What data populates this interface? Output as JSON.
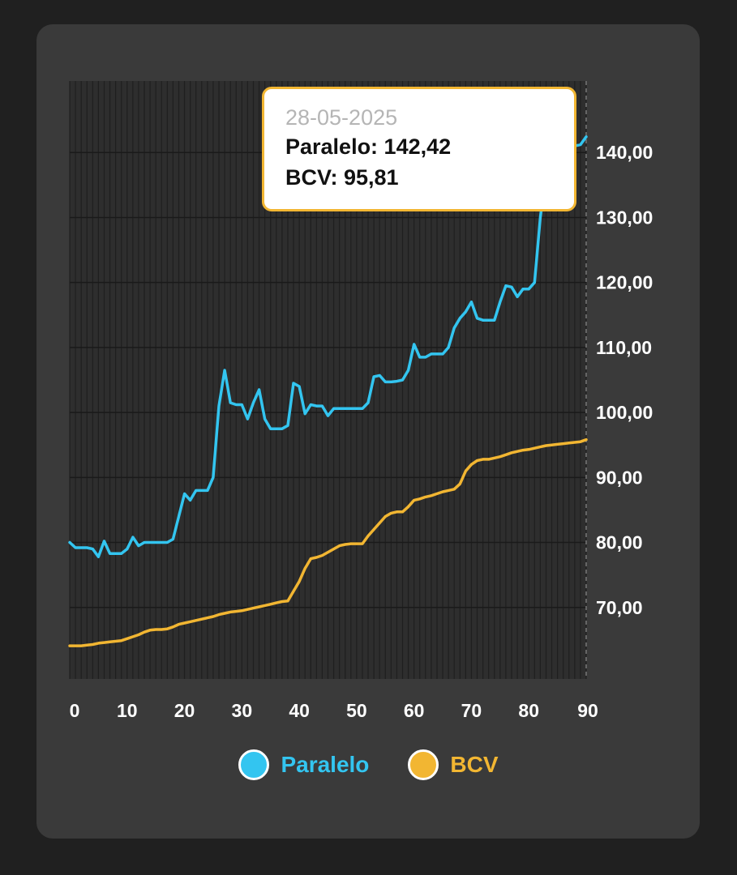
{
  "chart_data": {
    "type": "line",
    "x_ticks": [
      0,
      10,
      20,
      30,
      40,
      50,
      60,
      70,
      80,
      90
    ],
    "y_ticks": [
      70,
      80,
      90,
      100,
      110,
      120,
      130,
      140
    ],
    "y_tick_labels": [
      "70,00",
      "80,00",
      "90,00",
      "100,00",
      "110,00",
      "120,00",
      "130,00",
      "140,00"
    ],
    "xlim": [
      0,
      90
    ],
    "ylim": [
      59,
      151
    ],
    "grid": true,
    "legend_position": "bottom",
    "series": [
      {
        "name": "Paralelo",
        "color": "#33c5f0",
        "x": [
          0,
          1,
          2,
          3,
          4,
          5,
          6,
          7,
          8,
          9,
          10,
          11,
          12,
          13,
          14,
          15,
          16,
          17,
          18,
          19,
          20,
          21,
          22,
          23,
          24,
          25,
          26,
          27,
          28,
          29,
          30,
          31,
          32,
          33,
          34,
          35,
          36,
          37,
          38,
          39,
          40,
          41,
          42,
          43,
          44,
          45,
          46,
          47,
          48,
          49,
          50,
          51,
          52,
          53,
          54,
          55,
          56,
          57,
          58,
          59,
          60,
          61,
          62,
          63,
          64,
          65,
          66,
          67,
          68,
          69,
          70,
          71,
          72,
          73,
          74,
          75,
          76,
          77,
          78,
          79,
          80,
          81,
          82,
          83,
          84,
          85,
          86,
          87,
          88,
          89,
          90
        ],
        "values": [
          80.0,
          79.2,
          79.2,
          79.2,
          79.0,
          77.8,
          80.2,
          78.3,
          78.3,
          78.3,
          79.0,
          80.8,
          79.5,
          80.0,
          80.0,
          80.0,
          80.0,
          80.0,
          80.5,
          84.0,
          87.5,
          86.5,
          88.0,
          88.0,
          88.0,
          90.0,
          101.0,
          106.5,
          101.5,
          101.2,
          101.2,
          99.0,
          101.5,
          103.5,
          99.0,
          97.5,
          97.5,
          97.5,
          98.0,
          104.5,
          104.0,
          99.8,
          101.2,
          101.0,
          101.0,
          99.5,
          100.6,
          100.6,
          100.6,
          100.6,
          100.6,
          100.6,
          101.5,
          105.5,
          105.7,
          104.7,
          104.7,
          104.8,
          105.0,
          106.5,
          110.5,
          108.5,
          108.5,
          109.0,
          109.0,
          109.0,
          110.0,
          113.0,
          114.5,
          115.5,
          117.0,
          114.5,
          114.2,
          114.2,
          114.2,
          117.0,
          119.5,
          119.3,
          117.8,
          119.0,
          119.0,
          120.0,
          130.0,
          137.0,
          139.5,
          140.0,
          140.0,
          140.5,
          141.0,
          141.2,
          142.42
        ]
      },
      {
        "name": "BCV",
        "color": "#f2b632",
        "x": [
          0,
          1,
          2,
          3,
          4,
          5,
          6,
          7,
          8,
          9,
          10,
          11,
          12,
          13,
          14,
          15,
          16,
          17,
          18,
          19,
          20,
          21,
          22,
          23,
          24,
          25,
          26,
          27,
          28,
          29,
          30,
          31,
          32,
          33,
          34,
          35,
          36,
          37,
          38,
          39,
          40,
          41,
          42,
          43,
          44,
          45,
          46,
          47,
          48,
          49,
          50,
          51,
          52,
          53,
          54,
          55,
          56,
          57,
          58,
          59,
          60,
          61,
          62,
          63,
          64,
          65,
          66,
          67,
          68,
          69,
          70,
          71,
          72,
          73,
          74,
          75,
          76,
          77,
          78,
          79,
          80,
          81,
          82,
          83,
          84,
          85,
          86,
          87,
          88,
          89,
          90
        ],
        "values": [
          64.1,
          64.1,
          64.1,
          64.2,
          64.3,
          64.5,
          64.6,
          64.7,
          64.8,
          64.9,
          65.2,
          65.5,
          65.8,
          66.2,
          66.5,
          66.6,
          66.6,
          66.7,
          67.0,
          67.4,
          67.6,
          67.8,
          68.0,
          68.2,
          68.4,
          68.6,
          68.9,
          69.1,
          69.3,
          69.4,
          69.5,
          69.7,
          69.9,
          70.1,
          70.3,
          70.5,
          70.7,
          70.9,
          71.0,
          72.5,
          74.0,
          76.0,
          77.5,
          77.7,
          78.0,
          78.5,
          79.0,
          79.5,
          79.7,
          79.8,
          79.8,
          79.8,
          81.0,
          82.0,
          83.0,
          84.0,
          84.5,
          84.7,
          84.7,
          85.5,
          86.5,
          86.7,
          87.0,
          87.2,
          87.5,
          87.8,
          88.0,
          88.2,
          89.0,
          91.0,
          92.0,
          92.6,
          92.8,
          92.8,
          93.0,
          93.2,
          93.5,
          93.8,
          94.0,
          94.2,
          94.3,
          94.5,
          94.7,
          94.9,
          95.0,
          95.1,
          95.2,
          95.3,
          95.4,
          95.5,
          95.81
        ]
      }
    ],
    "tooltip": {
      "date": "28-05-2025",
      "lines": [
        "Paralelo: 142,42",
        "BCV: 95,81"
      ]
    }
  },
  "legend": [
    {
      "label": "Paralelo",
      "color": "#33c5f0"
    },
    {
      "label": "BCV",
      "color": "#f2b632"
    }
  ]
}
